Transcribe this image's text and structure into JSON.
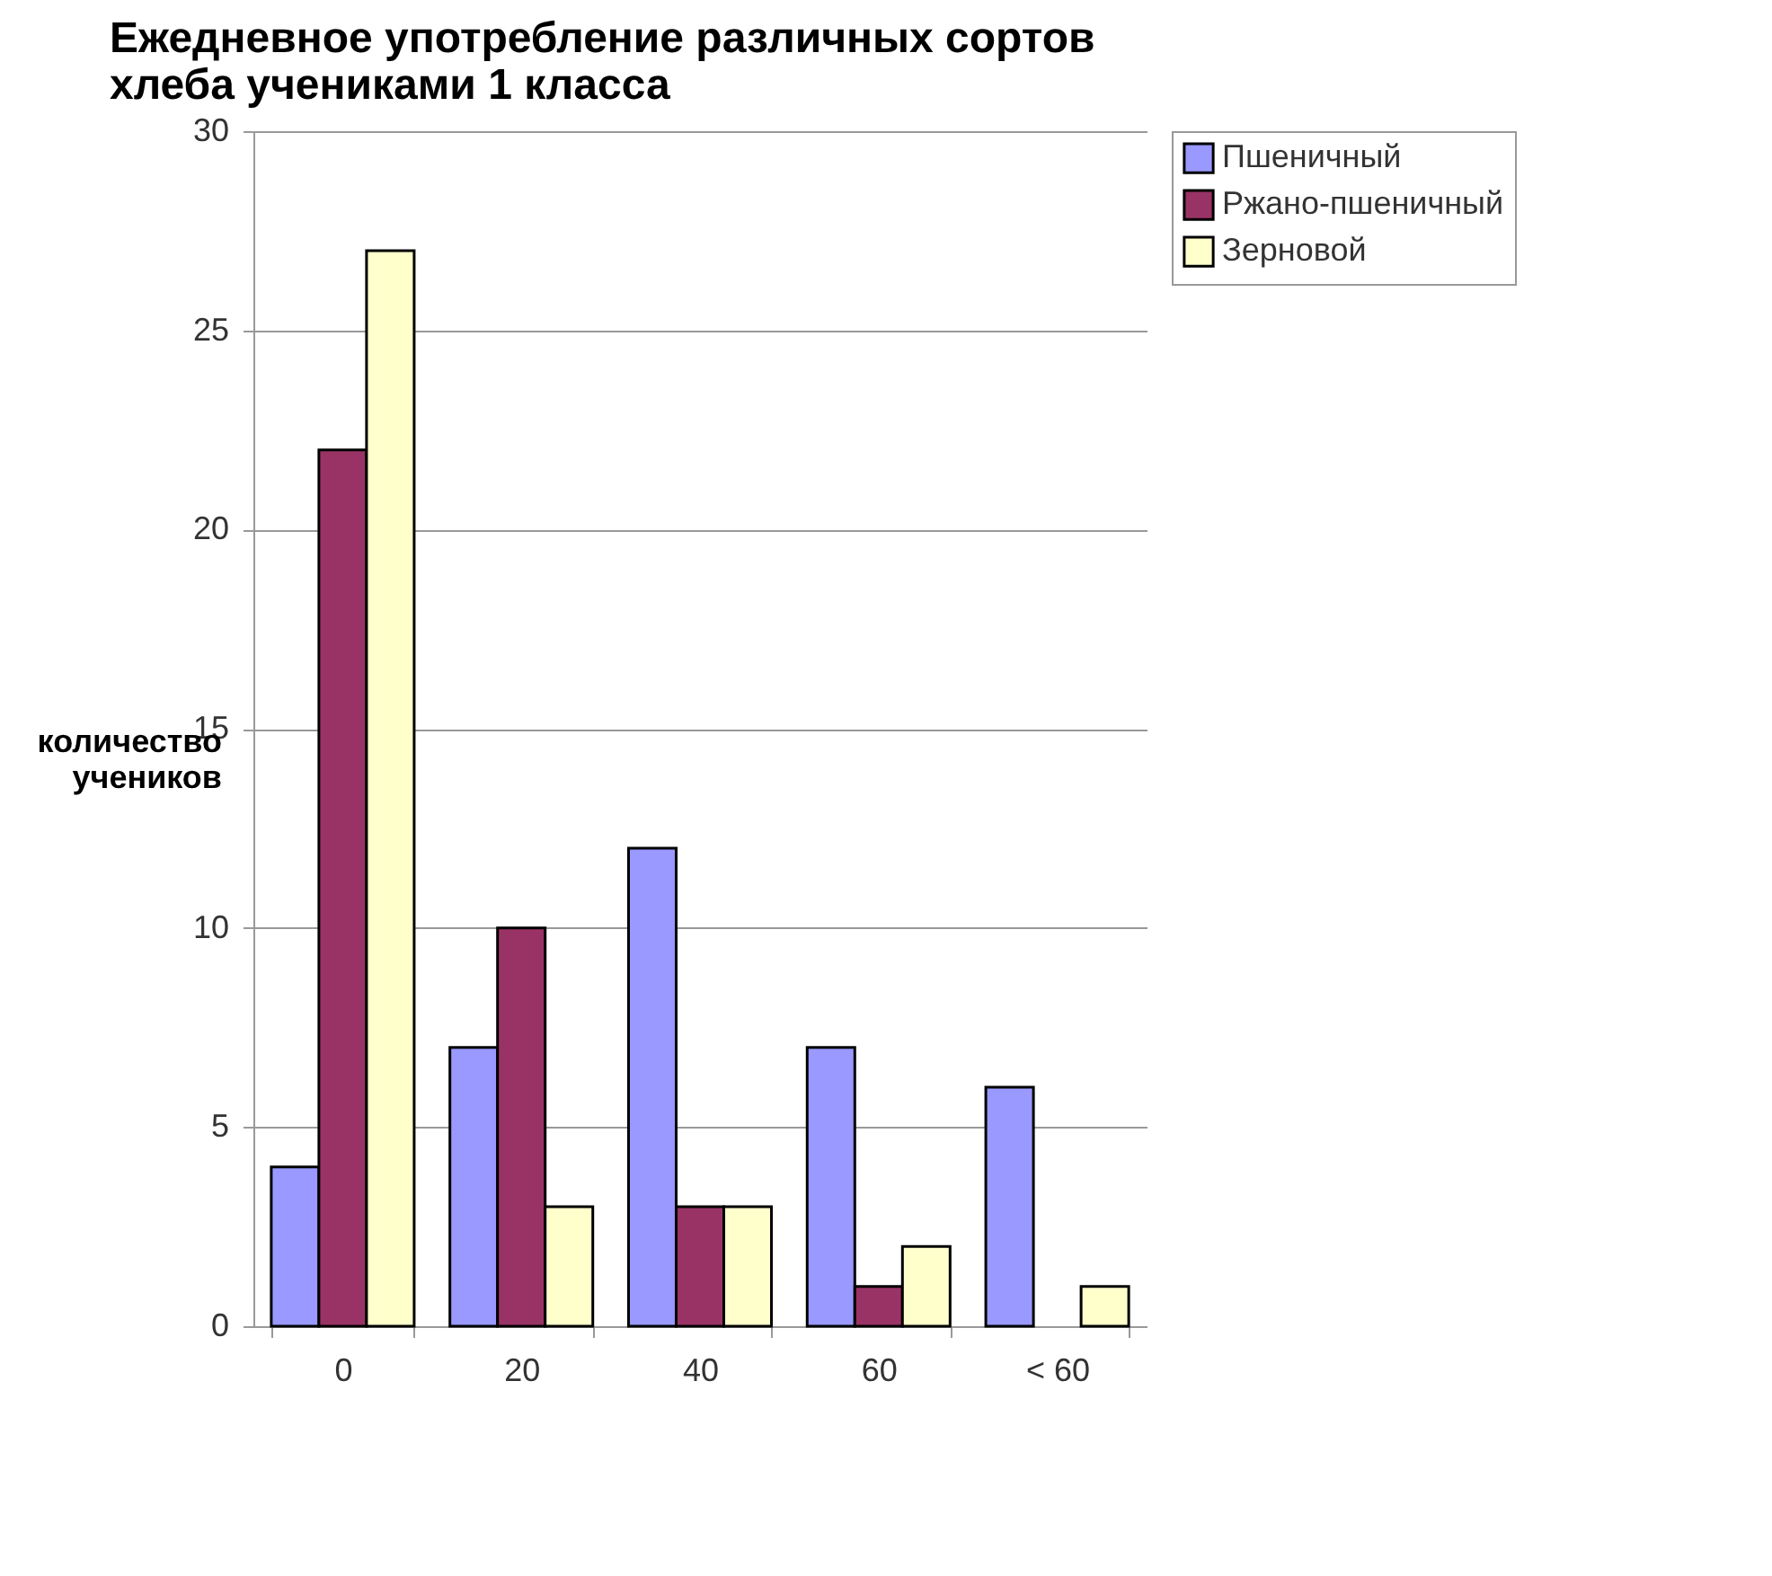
{
  "chart_data": {
    "type": "bar",
    "title": "Ежедневное употребление различных сортов хлеба учениками 1 класса",
    "ylabel": "количество учеников",
    "categories": [
      "0",
      "20",
      "40",
      "60",
      "< 60"
    ],
    "series": [
      {
        "name": "Пшеничный",
        "color": "#9999ff",
        "values": [
          4,
          7,
          12,
          7,
          6
        ]
      },
      {
        "name": "Ржано-пшеничный",
        "color": "#993366",
        "values": [
          22,
          10,
          3,
          1,
          null
        ]
      },
      {
        "name": "Зерновой",
        "color": "#ffffcc",
        "values": [
          27,
          3,
          3,
          2,
          1
        ]
      }
    ],
    "ylim": [
      0,
      30
    ],
    "yticks": [
      0,
      5,
      10,
      15,
      20,
      25,
      30
    ],
    "grid": "y",
    "legend": "right"
  }
}
